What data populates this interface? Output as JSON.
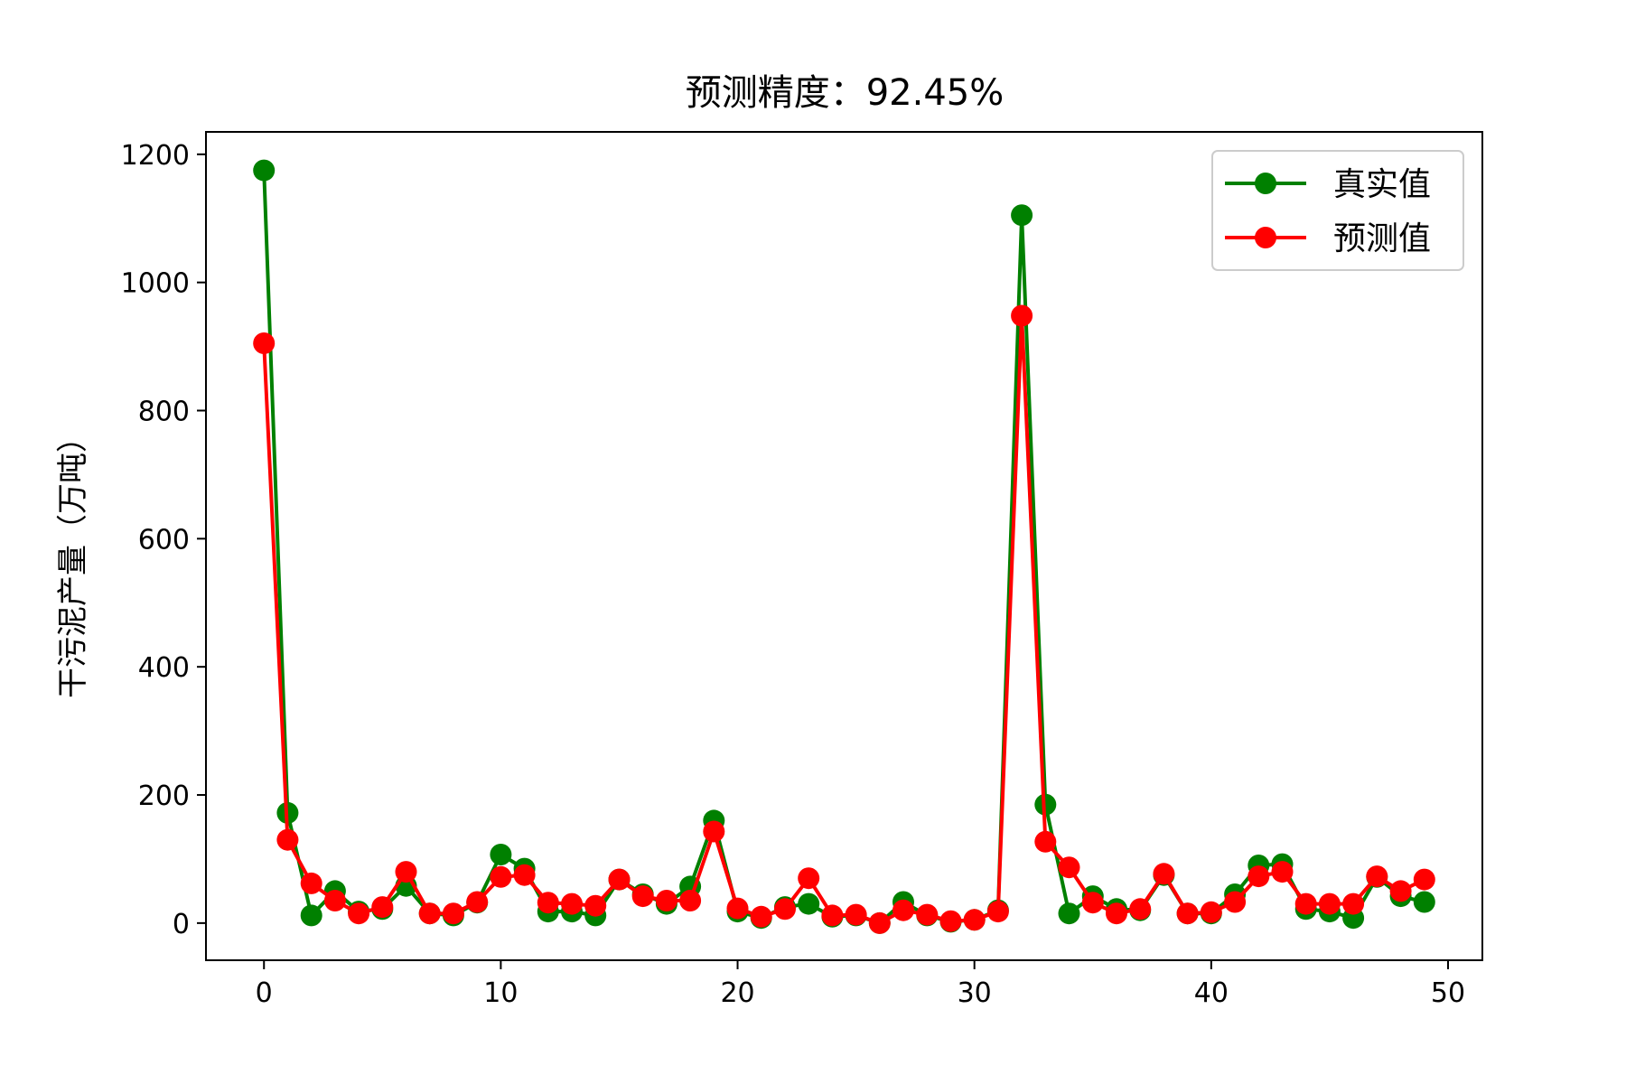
{
  "chart_data": {
    "type": "line",
    "title": "预测精度：92.45%",
    "xlabel": "",
    "ylabel": "干污泥产量（万吨）",
    "xlim": [
      -2.45,
      51.45
    ],
    "ylim": [
      -58,
      1235
    ],
    "xticks": [
      0,
      10,
      20,
      30,
      40,
      50
    ],
    "yticks": [
      0,
      200,
      400,
      600,
      800,
      1000,
      1200
    ],
    "grid": false,
    "legend_position": "top-right",
    "x": [
      0,
      1,
      2,
      3,
      4,
      5,
      6,
      7,
      8,
      9,
      10,
      11,
      12,
      13,
      14,
      15,
      16,
      17,
      18,
      19,
      20,
      21,
      22,
      23,
      24,
      25,
      26,
      27,
      28,
      29,
      30,
      31,
      32,
      33,
      34,
      35,
      36,
      37,
      38,
      39,
      40,
      41,
      42,
      43,
      44,
      45,
      46,
      47,
      48,
      49
    ],
    "series": [
      {
        "name": "真实值",
        "color": "#008000",
        "marker": "circle",
        "values": [
          1175,
          172,
          12,
          50,
          18,
          22,
          58,
          15,
          12,
          32,
          107,
          85,
          18,
          18,
          12,
          68,
          45,
          30,
          57,
          160,
          18,
          8,
          25,
          30,
          10,
          12,
          0,
          33,
          12,
          2,
          5,
          20,
          1105,
          185,
          15,
          42,
          22,
          20,
          75,
          15,
          15,
          45,
          90,
          92,
          22,
          18,
          8,
          72,
          42,
          33
        ]
      },
      {
        "name": "预测值",
        "color": "#ff0000",
        "marker": "circle",
        "values": [
          905,
          130,
          62,
          35,
          15,
          25,
          80,
          15,
          15,
          33,
          72,
          75,
          32,
          30,
          27,
          68,
          42,
          35,
          35,
          143,
          23,
          10,
          22,
          70,
          12,
          13,
          0,
          20,
          13,
          3,
          5,
          18,
          948,
          127,
          87,
          32,
          15,
          22,
          77,
          15,
          17,
          33,
          73,
          80,
          30,
          30,
          30,
          73,
          50,
          68
        ]
      }
    ]
  }
}
